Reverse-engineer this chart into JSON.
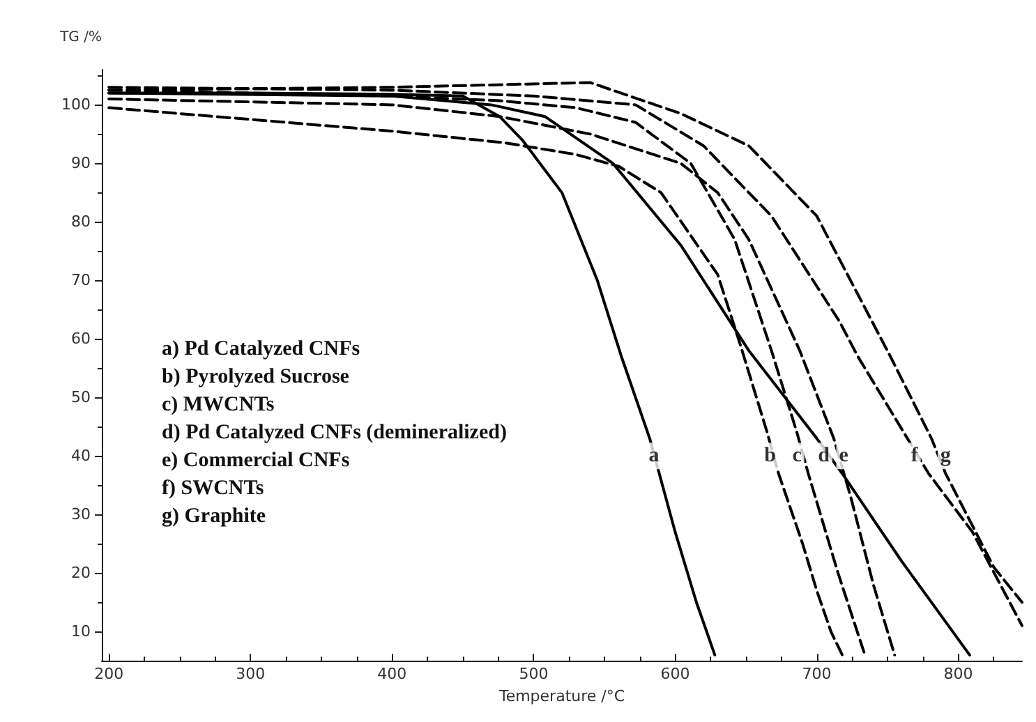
{
  "chart_data": {
    "type": "line",
    "xlabel": "Temperature /°C",
    "ylabel": "TG /%",
    "xlim": [
      195,
      845
    ],
    "ylim": [
      5,
      106
    ],
    "xticks": [
      200,
      300,
      400,
      500,
      600,
      700,
      800
    ],
    "yticks": [
      10,
      20,
      30,
      40,
      50,
      60,
      70,
      80,
      90,
      100
    ],
    "grid": false,
    "marker": "none",
    "series": [
      {
        "color": "#000000",
        "line_style": "solid",
        "x": [
          200,
          300,
          400,
          450,
          476,
          492,
          520,
          545,
          562,
          582,
          600,
          615,
          628
        ],
        "values": [
          102,
          102,
          101.8,
          101.5,
          98,
          94,
          85,
          70,
          57,
          43,
          27,
          15,
          6
        ]
      },
      {
        "color": "#000000",
        "line_style": "dashed",
        "x": [
          200,
          300,
          400,
          480,
          530,
          560,
          590,
          630,
          646,
          665,
          673,
          690,
          700,
          710,
          718
        ],
        "values": [
          99.5,
          97.5,
          95.5,
          93.5,
          91.5,
          89.5,
          85,
          71,
          59,
          44,
          37,
          25,
          17,
          10,
          6
        ]
      },
      {
        "color": "#000000",
        "line_style": "dashed",
        "x": [
          200,
          400,
          476,
          530,
          572,
          611,
          642,
          668,
          686,
          694,
          715,
          734
        ],
        "values": [
          102.5,
          101.5,
          100.7,
          99.5,
          97,
          90,
          77,
          58,
          44,
          37,
          20,
          6
        ]
      },
      {
        "color": "#000000",
        "line_style": "dashed",
        "x": [
          200,
          400,
          476,
          540,
          604,
          630,
          652,
          688,
          712,
          724,
          740,
          755
        ],
        "values": [
          101,
          100,
          98,
          95,
          90,
          85,
          77,
          58,
          43,
          33,
          18,
          6
        ]
      },
      {
        "color": "#000000",
        "line_style": "solid",
        "x": [
          200,
          400,
          470,
          508,
          556,
          604,
          652,
          700,
          718,
          760,
          808
        ],
        "values": [
          102,
          101.5,
          100,
          98,
          90,
          76,
          58,
          43,
          37,
          22,
          6
        ]
      },
      {
        "color": "#000000",
        "line_style": "dashed",
        "x": [
          200,
          400,
          500,
          572,
          620,
          668,
          716,
          729,
          764,
          779,
          810,
          845
        ],
        "values": [
          103,
          102.5,
          101.5,
          100,
          93,
          81,
          63,
          57,
          43,
          37,
          27,
          11
        ]
      },
      {
        "color": "#000000",
        "line_style": "dashed",
        "x": [
          200,
          400,
          540,
          604,
          652,
          700,
          752,
          781,
          791,
          825,
          845
        ],
        "values": [
          102.5,
          103,
          103.8,
          98.5,
          93,
          81,
          57,
          43,
          37,
          21,
          15
        ]
      }
    ],
    "annotations": [
      "a) Pd Catalyzed CNFs",
      "b) Pyrolyzed Sucrose",
      "c) MWCNTs",
      "d) Pd Catalyzed CNFs (demineralized)",
      "e) Commercial CNFs",
      "f) SWCNTs",
      "g) Graphite",
      {
        "text": "a",
        "x": 585,
        "y": 40
      },
      {
        "text": "b",
        "x": 667,
        "y": 40
      },
      {
        "text": "c",
        "x": 686,
        "y": 40
      },
      {
        "text": "d",
        "x": 705,
        "y": 40
      },
      {
        "text": "e",
        "x": 719,
        "y": 40
      },
      {
        "text": "f",
        "x": 769,
        "y": 40
      },
      {
        "text": "g",
        "x": 791,
        "y": 40
      }
    ]
  }
}
